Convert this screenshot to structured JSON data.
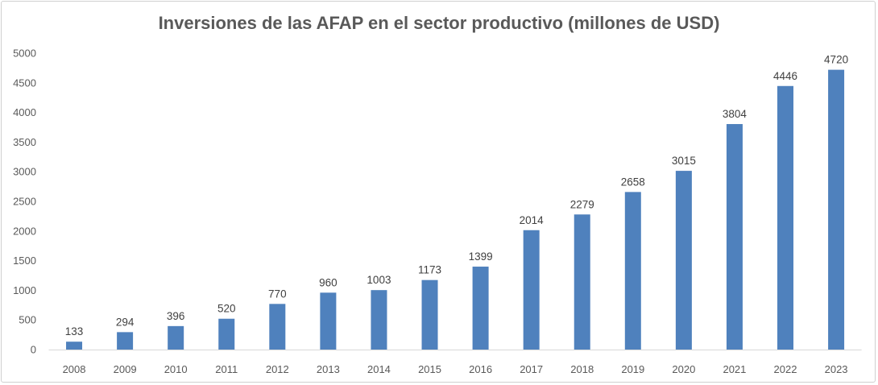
{
  "chart_data": {
    "type": "bar",
    "title": "Inversiones de las AFAP  en el sector productivo (millones de USD)",
    "xlabel": "",
    "ylabel": "",
    "ylim": [
      0,
      5000
    ],
    "yticks": [
      0,
      500,
      1000,
      1500,
      2000,
      2500,
      3000,
      3500,
      4000,
      4500,
      5000
    ],
    "grid": false,
    "legend": "none",
    "categories": [
      "2008",
      "2009",
      "2010",
      "2011",
      "2012",
      "2013",
      "2014",
      "2015",
      "2016",
      "2017",
      "2018",
      "2019",
      "2020",
      "2021",
      "2022",
      "2023"
    ],
    "values": [
      133,
      294,
      396,
      520,
      770,
      960,
      1003,
      1173,
      1399,
      2014,
      2279,
      2658,
      3015,
      3804,
      4446,
      4720
    ],
    "color": "#4f81bd"
  }
}
